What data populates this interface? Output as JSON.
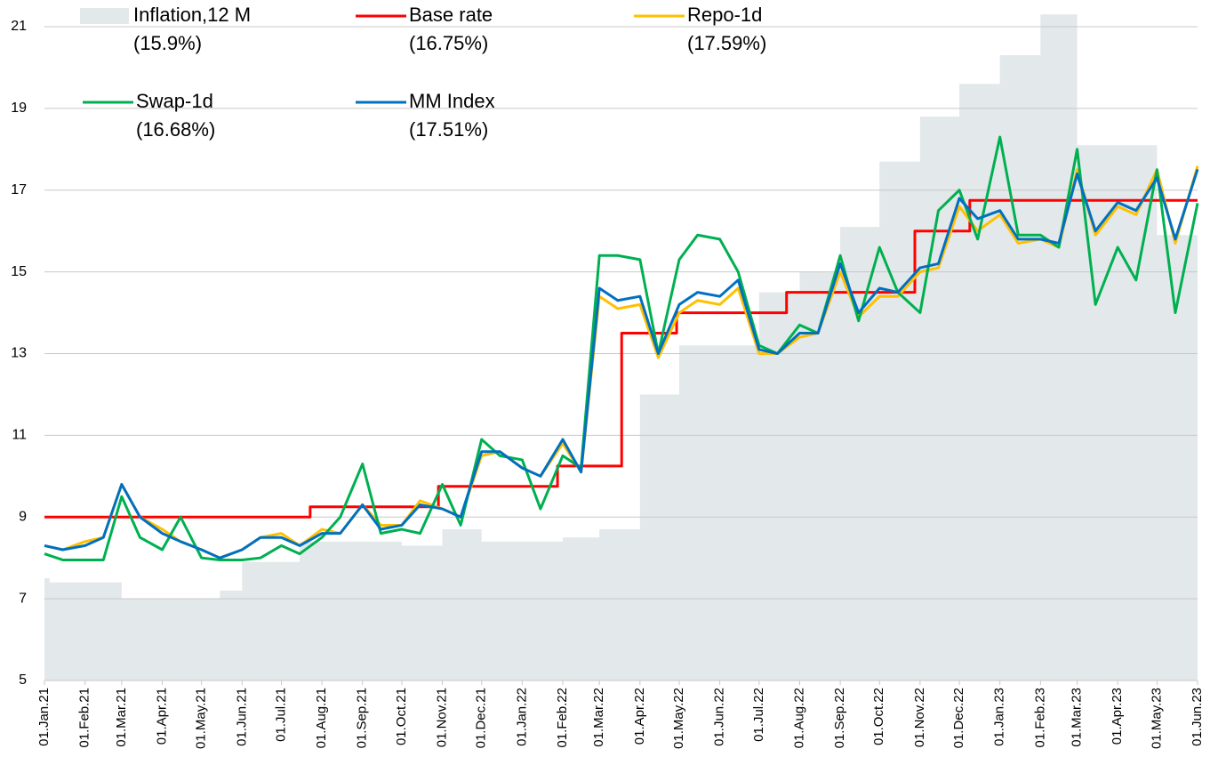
{
  "chart_data": {
    "type": "line",
    "xlim": [
      "2021-01-01",
      "2023-06-01"
    ],
    "ylim": [
      5,
      21
    ],
    "yticks": [
      5,
      7,
      9,
      11,
      13,
      15,
      17,
      19,
      21
    ],
    "grid": true,
    "xticks": [
      {
        "value": "2021-01-01",
        "label": "01.Jan.21"
      },
      {
        "value": "2021-02-01",
        "label": "01.Feb.21"
      },
      {
        "value": "2021-03-01",
        "label": "01.Mar.21"
      },
      {
        "value": "2021-04-01",
        "label": "01.Apr.21"
      },
      {
        "value": "2021-05-01",
        "label": "01.May.21"
      },
      {
        "value": "2021-06-01",
        "label": "01.Jun.21"
      },
      {
        "value": "2021-07-01",
        "label": "01.Jul.21"
      },
      {
        "value": "2021-08-01",
        "label": "01.Aug.21"
      },
      {
        "value": "2021-09-01",
        "label": "01.Sep.21"
      },
      {
        "value": "2021-10-01",
        "label": "01.Oct.21"
      },
      {
        "value": "2021-11-01",
        "label": "01.Nov.21"
      },
      {
        "value": "2021-12-01",
        "label": "01.Dec.21"
      },
      {
        "value": "2022-01-01",
        "label": "01.Jan.22"
      },
      {
        "value": "2022-02-01",
        "label": "01.Feb.22"
      },
      {
        "value": "2022-03-01",
        "label": "01.Mar.22"
      },
      {
        "value": "2022-04-01",
        "label": "01.Apr.22"
      },
      {
        "value": "2022-05-01",
        "label": "01.May.22"
      },
      {
        "value": "2022-06-01",
        "label": "01.Jun.22"
      },
      {
        "value": "2022-07-01",
        "label": "01.Jul.22"
      },
      {
        "value": "2022-08-01",
        "label": "01.Aug.22"
      },
      {
        "value": "2022-09-01",
        "label": "01.Sep.22"
      },
      {
        "value": "2022-10-01",
        "label": "01.Oct.22"
      },
      {
        "value": "2022-11-01",
        "label": "01.Nov.22"
      },
      {
        "value": "2022-12-01",
        "label": "01.Dec.22"
      },
      {
        "value": "2023-01-01",
        "label": "01.Jan.23"
      },
      {
        "value": "2023-02-01",
        "label": "01.Feb.23"
      },
      {
        "value": "2023-03-01",
        "label": "01.Mar.23"
      },
      {
        "value": "2023-04-01",
        "label": "01.Apr.23"
      },
      {
        "value": "2023-05-01",
        "label": "01.May.23"
      },
      {
        "value": "2023-06-01",
        "label": "01.Jun.23"
      }
    ],
    "series": [
      {
        "name": "Inflation,12 M",
        "label": "(15.9%)",
        "color": "#e3e8ea",
        "kind": "area",
        "step": true,
        "x": [
          "2021-01-01",
          "2021-01-05",
          "2021-03-01",
          "2021-05-15",
          "2021-06-01",
          "2021-07-15",
          "2021-10-01",
          "2021-11-01",
          "2021-12-01",
          "2022-02-01",
          "2022-03-01",
          "2022-04-01",
          "2022-05-01",
          "2022-06-01",
          "2022-07-01",
          "2022-08-01",
          "2022-09-01",
          "2022-10-01",
          "2022-11-01",
          "2022-12-01",
          "2023-01-01",
          "2023-02-01",
          "2023-03-01",
          "2023-05-01"
        ],
        "values": [
          7.5,
          7.4,
          7.0,
          7.2,
          7.9,
          8.4,
          8.3,
          8.7,
          8.4,
          8.5,
          8.7,
          12.0,
          13.2,
          13.2,
          14.5,
          15.0,
          16.1,
          17.7,
          18.8,
          19.6,
          20.3,
          21.3,
          18.1,
          15.9
        ]
      },
      {
        "name": "Base rate",
        "label": "(16.75%)",
        "color": "#ff0000",
        "step": true,
        "x": [
          "2021-01-01",
          "2021-07-23",
          "2021-10-29",
          "2022-01-28",
          "2022-03-18",
          "2022-04-29",
          "2022-07-22",
          "2022-10-28",
          "2022-12-09"
        ],
        "values": [
          9.0,
          9.25,
          9.75,
          10.25,
          13.5,
          14.0,
          14.5,
          16.0,
          16.75
        ]
      },
      {
        "name": "Repo-1d",
        "label": "(17.59%)",
        "color": "#ffc000",
        "x": "semi",
        "values": [
          8.3,
          8.2,
          8.4,
          8.5,
          9.8,
          9.0,
          8.7,
          8.4,
          8.2,
          8.0,
          8.2,
          8.5,
          8.6,
          8.3,
          8.7,
          8.6,
          9.3,
          8.8,
          8.8,
          9.4,
          9.2,
          9.0,
          10.5,
          10.6,
          10.2,
          10.0,
          10.8,
          10.1,
          14.4,
          14.1,
          14.2,
          12.9,
          14.0,
          14.3,
          14.2,
          14.6,
          13.0,
          13.0,
          13.4,
          13.5,
          15.0,
          13.9,
          14.4,
          14.4,
          15.0,
          15.1,
          16.6,
          16.0,
          16.4,
          15.7,
          15.8,
          15.6,
          17.5,
          15.9,
          16.6,
          16.4,
          17.5,
          15.7,
          17.59
        ]
      },
      {
        "name": "Swap-1d",
        "label": "(16.68%)",
        "color": "#00b050",
        "x": "semi",
        "values": [
          8.1,
          7.95,
          7.95,
          7.95,
          9.5,
          8.5,
          8.2,
          9.0,
          8.0,
          7.95,
          7.95,
          8.0,
          8.3,
          8.1,
          8.5,
          9.0,
          10.3,
          8.6,
          8.7,
          8.6,
          9.8,
          8.8,
          10.9,
          10.5,
          10.4,
          9.2,
          10.5,
          10.2,
          15.4,
          15.4,
          15.3,
          13.0,
          15.3,
          15.9,
          15.8,
          15.0,
          13.2,
          13.0,
          13.7,
          13.5,
          15.4,
          13.8,
          15.6,
          14.5,
          14.0,
          16.5,
          17.0,
          15.8,
          18.3,
          15.9,
          15.9,
          15.6,
          18.0,
          14.2,
          15.6,
          14.8,
          17.5,
          14.0,
          16.68
        ]
      },
      {
        "name": "MM Index",
        "label": "(17.51%)",
        "color": "#0070c0",
        "x": "semi",
        "values": [
          8.3,
          8.2,
          8.3,
          8.5,
          9.8,
          9.0,
          8.6,
          8.4,
          8.2,
          8.0,
          8.2,
          8.5,
          8.5,
          8.3,
          8.6,
          8.6,
          9.3,
          8.7,
          8.8,
          9.3,
          9.2,
          9.0,
          10.6,
          10.6,
          10.2,
          10.0,
          10.9,
          10.1,
          14.6,
          14.3,
          14.4,
          13.0,
          14.2,
          14.5,
          14.4,
          14.8,
          13.1,
          13.0,
          13.5,
          13.5,
          15.2,
          14.0,
          14.6,
          14.5,
          15.1,
          15.2,
          16.8,
          16.3,
          16.5,
          15.8,
          15.8,
          15.7,
          17.4,
          16.0,
          16.7,
          16.5,
          17.3,
          15.8,
          17.51
        ]
      }
    ]
  }
}
